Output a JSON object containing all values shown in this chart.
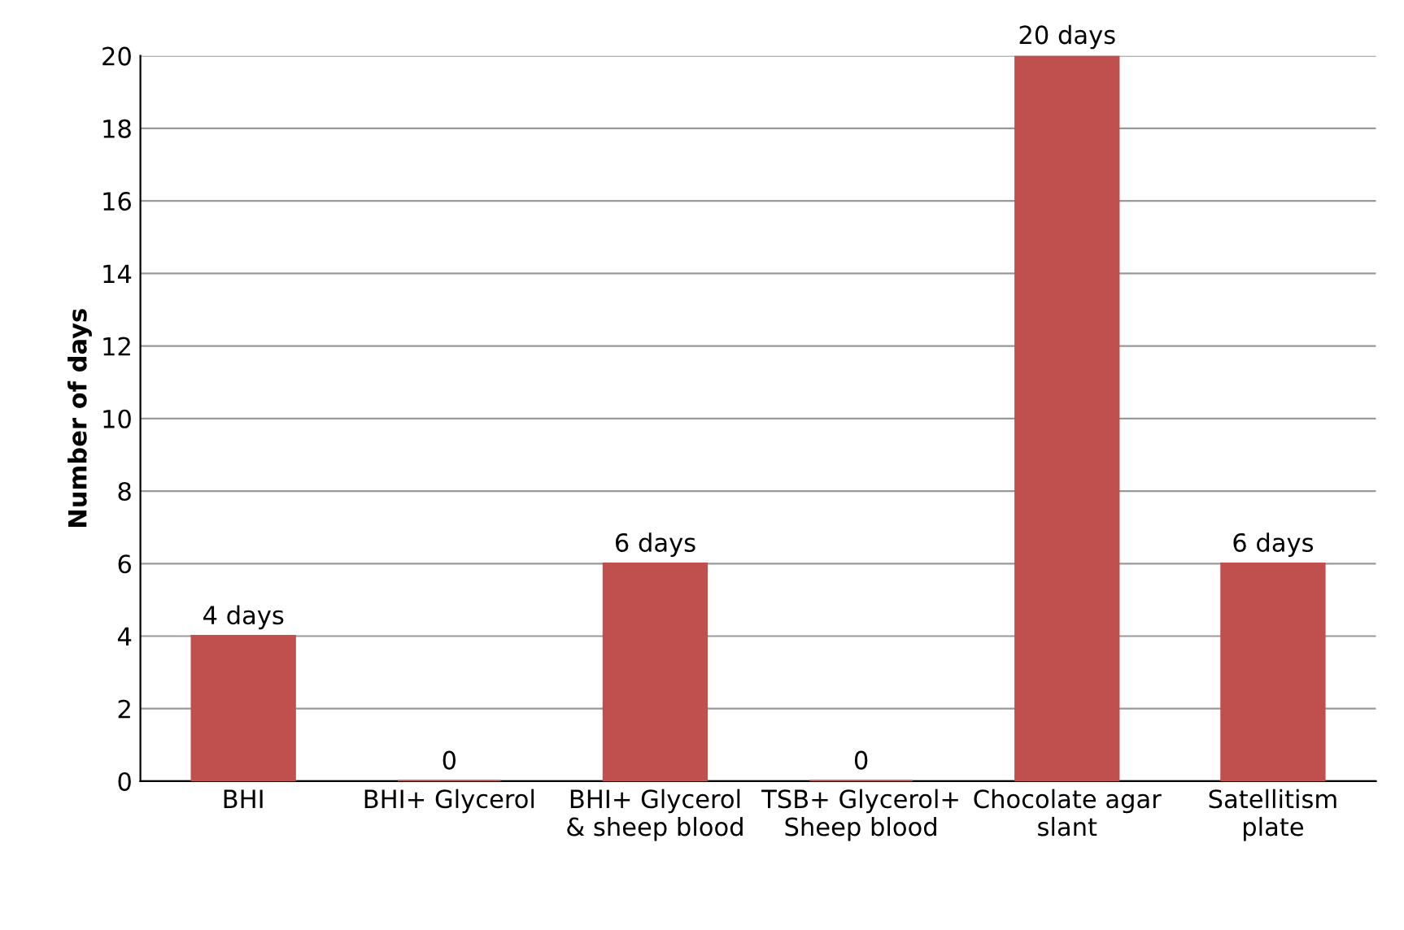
{
  "chart_data": {
    "type": "bar",
    "ylabel": "Number of days",
    "categories": [
      "BHI",
      "BHI+ Glycerol",
      "BHI+ Glycerol & sheep blood",
      "TSB+ Glycerol+ Sheep blood",
      "Chocolate agar slant",
      "Satellitism plate"
    ],
    "values": [
      4,
      0,
      6,
      0,
      20,
      6
    ],
    "value_labels": [
      "4 days",
      "0",
      "6 days",
      "0",
      "20 days",
      "6 days"
    ],
    "color": "#c0504d",
    "ylim": [
      0,
      20
    ],
    "yticks": [
      0,
      2,
      4,
      6,
      8,
      10,
      12,
      14,
      16,
      18,
      20
    ],
    "grid": "y"
  }
}
